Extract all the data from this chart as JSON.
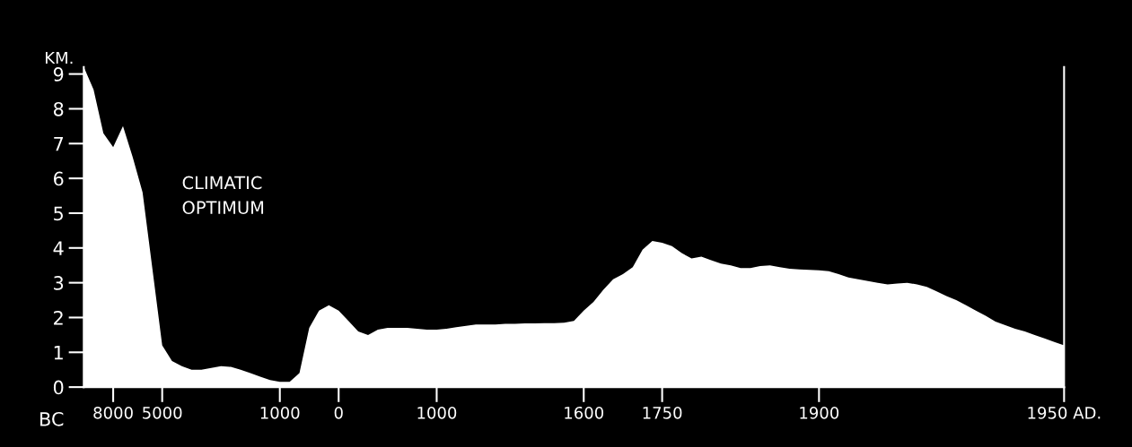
{
  "chart_data": {
    "type": "area",
    "xlabel": "BC",
    "ylabel": "KM.",
    "categories": [
      null,
      null,
      null,
      "8000",
      null,
      null,
      null,
      null,
      "5000",
      null,
      null,
      null,
      null,
      null,
      null,
      null,
      null,
      null,
      null,
      null,
      "1000",
      null,
      null,
      null,
      null,
      null,
      "0",
      null,
      null,
      null,
      null,
      null,
      null,
      null,
      null,
      null,
      "1000",
      null,
      null,
      null,
      null,
      null,
      null,
      null,
      null,
      null,
      null,
      null,
      null,
      null,
      null,
      "1600",
      null,
      null,
      null,
      null,
      null,
      null,
      null,
      "1750",
      null,
      null,
      null,
      null,
      null,
      null,
      null,
      null,
      null,
      null,
      null,
      null,
      null,
      null,
      null,
      "1900",
      null,
      null,
      null,
      null,
      null,
      null,
      null,
      null,
      null,
      null,
      null,
      null,
      null,
      null,
      null,
      null,
      null,
      null,
      null,
      null,
      null,
      null,
      null,
      null,
      "1950 AD."
    ],
    "series": [
      {
        "color": "#ffffff",
        "values": [
          9.2,
          8.55,
          7.3,
          6.9,
          7.5,
          6.6,
          5.6,
          3.4,
          1.2,
          0.75,
          0.6,
          0.5,
          0.5,
          0.55,
          0.6,
          0.58,
          0.5,
          0.4,
          0.3,
          0.2,
          0.15,
          0.15,
          0.4,
          1.7,
          2.2,
          2.35,
          2.2,
          1.9,
          1.6,
          1.5,
          1.65,
          1.7,
          1.7,
          1.7,
          1.68,
          1.65,
          1.65,
          1.68,
          1.72,
          1.76,
          1.8,
          1.8,
          1.8,
          1.82,
          1.82,
          1.83,
          1.83,
          1.84,
          1.84,
          1.85,
          1.9,
          2.2,
          2.45,
          2.8,
          3.1,
          3.25,
          3.45,
          3.95,
          4.2,
          4.15,
          4.05,
          3.85,
          3.7,
          3.75,
          3.65,
          3.55,
          3.5,
          3.42,
          3.42,
          3.48,
          3.5,
          3.45,
          3.4,
          3.38,
          3.37,
          3.36,
          3.33,
          3.25,
          3.15,
          3.1,
          3.05,
          3.0,
          2.95,
          2.98,
          3.0,
          2.95,
          2.88,
          2.75,
          2.62,
          2.5,
          2.35,
          2.2,
          2.05,
          1.88,
          1.78,
          1.68,
          1.6,
          1.5,
          1.4,
          1.3,
          1.2
        ]
      }
    ],
    "ylim": [
      0,
      9.2
    ],
    "yticks": [
      0,
      1,
      2,
      3,
      4,
      5,
      6,
      7,
      8,
      9
    ],
    "annotations": [
      "CLIMATIC\nOPTIMUM"
    ],
    "grid": false,
    "legend": false
  }
}
